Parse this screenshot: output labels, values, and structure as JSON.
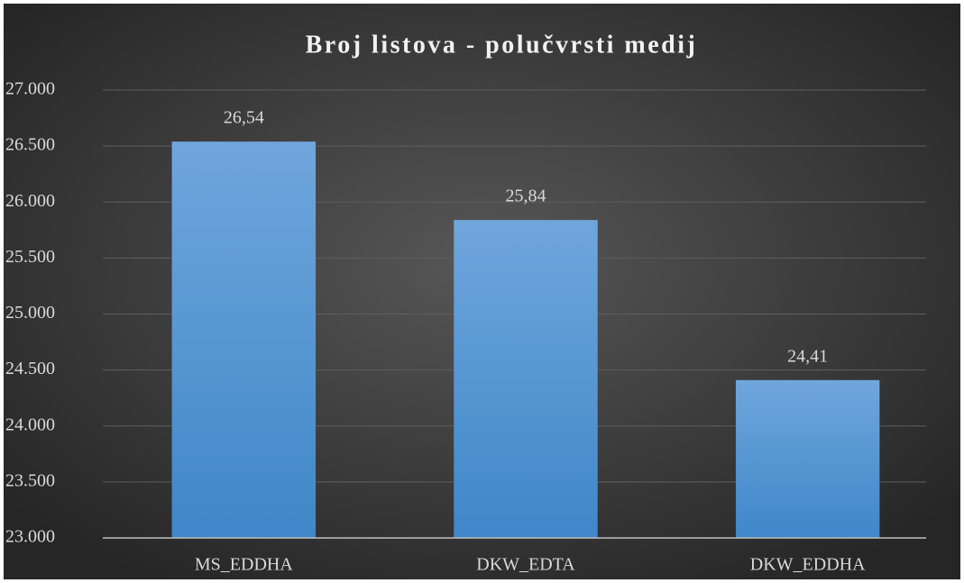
{
  "chart_data": {
    "type": "bar",
    "title": "Broj listova - polučvrsti medij",
    "categories": [
      "MS_EDDHA",
      "DKW_EDTA",
      "DKW_EDDHA"
    ],
    "values": [
      26.54,
      25.84,
      24.41
    ],
    "value_labels": [
      "26,54",
      "25,84",
      "24,41"
    ],
    "color": "#5b9bd5",
    "ylim": [
      23,
      27
    ],
    "yticks": [
      {
        "value": 23,
        "label": "23.000"
      },
      {
        "value": 23.5,
        "label": "23.500"
      },
      {
        "value": 24,
        "label": "24.000"
      },
      {
        "value": 24.5,
        "label": "24.500"
      },
      {
        "value": 25,
        "label": "25.000"
      },
      {
        "value": 25.5,
        "label": "25.500"
      },
      {
        "value": 26,
        "label": "26.000"
      },
      {
        "value": 26.5,
        "label": "26.500"
      },
      {
        "value": 27,
        "label": "27.000"
      }
    ],
    "grid": true
  }
}
